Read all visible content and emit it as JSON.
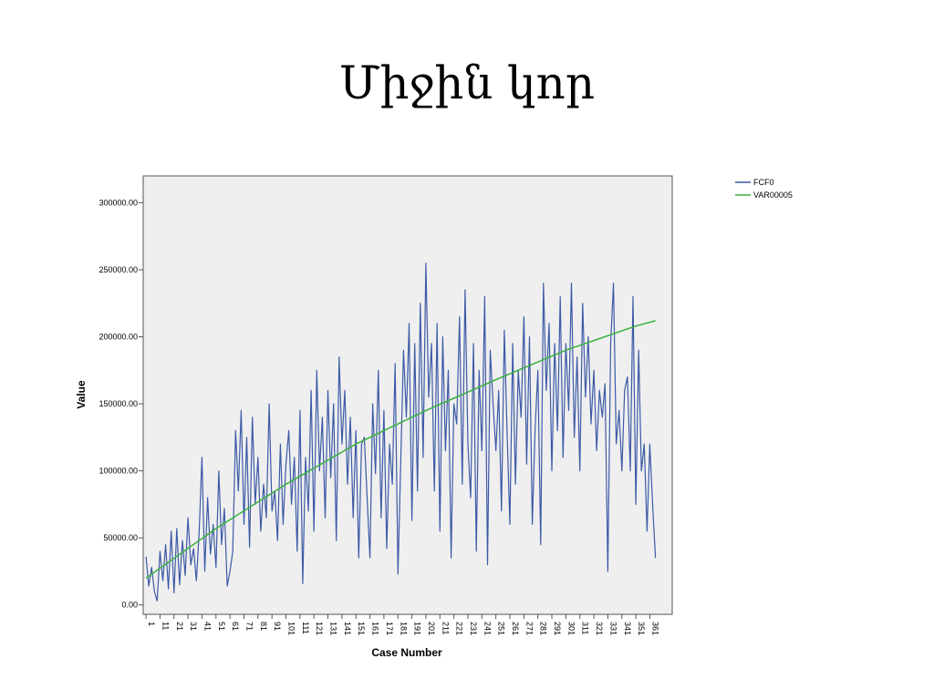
{
  "slide": {
    "title": "Միջին կոր"
  },
  "chart_data": {
    "type": "line",
    "xlabel": "Case Number",
    "ylabel": "Value",
    "ylim": [
      -7000,
      320000
    ],
    "xlim": [
      -1,
      377
    ],
    "y_ticks": [
      0,
      50000,
      100000,
      150000,
      200000,
      250000,
      300000
    ],
    "y_tick_labels": [
      "0.00",
      "50000.00",
      "100000.00",
      "150000.00",
      "200000.00",
      "250000.00",
      "300000.00"
    ],
    "x_ticks": [
      1,
      11,
      21,
      31,
      41,
      51,
      61,
      71,
      81,
      91,
      101,
      111,
      121,
      131,
      141,
      151,
      161,
      171,
      181,
      191,
      201,
      211,
      221,
      231,
      241,
      251,
      261,
      271,
      281,
      291,
      301,
      311,
      321,
      331,
      341,
      351,
      361
    ],
    "x_tick_labels": [
      "1",
      "11",
      "21",
      "31",
      "41",
      "51",
      "61",
      "71",
      "81",
      "91",
      "101",
      "111",
      "121",
      "131",
      "141",
      "151",
      "161",
      "171",
      "181",
      "191",
      "201",
      "211",
      "221",
      "231",
      "241",
      "251",
      "261",
      "271",
      "281",
      "291",
      "301",
      "311",
      "321",
      "331",
      "341",
      "351",
      "361"
    ],
    "grid": false,
    "plot_background": "#efefef",
    "legend": {
      "placement": "outside-top-right"
    },
    "series": [
      {
        "name": "FCF0",
        "color": "#3c5aa6",
        "x": [
          1,
          3,
          5,
          7,
          9,
          11,
          13,
          15,
          17,
          19,
          21,
          23,
          25,
          27,
          29,
          31,
          33,
          35,
          37,
          39,
          41,
          43,
          45,
          47,
          49,
          51,
          53,
          55,
          57,
          59,
          61,
          63,
          65,
          67,
          69,
          71,
          73,
          75,
          77,
          79,
          81,
          83,
          85,
          87,
          89,
          91,
          93,
          95,
          97,
          99,
          101,
          103,
          105,
          107,
          109,
          111,
          113,
          115,
          117,
          119,
          121,
          123,
          125,
          127,
          129,
          131,
          133,
          135,
          137,
          139,
          141,
          143,
          145,
          147,
          149,
          151,
          153,
          155,
          157,
          159,
          161,
          163,
          165,
          167,
          169,
          171,
          173,
          175,
          177,
          179,
          181,
          183,
          185,
          187,
          189,
          191,
          193,
          195,
          197,
          199,
          201,
          203,
          205,
          207,
          209,
          211,
          213,
          215,
          217,
          219,
          221,
          223,
          225,
          227,
          229,
          231,
          233,
          235,
          237,
          239,
          241,
          243,
          245,
          247,
          249,
          251,
          253,
          255,
          257,
          259,
          261,
          263,
          265,
          267,
          269,
          271,
          273,
          275,
          277,
          279,
          281,
          283,
          285,
          287,
          289,
          291,
          293,
          295,
          297,
          299,
          301,
          303,
          305,
          307,
          309,
          311,
          313,
          315,
          317,
          319,
          321,
          323,
          325,
          327,
          329,
          331,
          333,
          335,
          337,
          339,
          341,
          343,
          345,
          347,
          349,
          351,
          353,
          355,
          357,
          359,
          361,
          363,
          365
        ],
        "values": [
          36000,
          14000,
          28000,
          10000,
          3000,
          40000,
          18000,
          45000,
          12000,
          55000,
          9000,
          57000,
          15000,
          48000,
          22000,
          65000,
          30000,
          42000,
          18000,
          55000,
          110000,
          25000,
          80000,
          38000,
          60000,
          28000,
          100000,
          45000,
          72000,
          14000,
          25000,
          40000,
          130000,
          85000,
          145000,
          60000,
          125000,
          43000,
          140000,
          75000,
          110000,
          55000,
          90000,
          65000,
          150000,
          70000,
          85000,
          48000,
          120000,
          60000,
          105000,
          130000,
          75000,
          110000,
          40000,
          145000,
          16000,
          110000,
          70000,
          160000,
          55000,
          175000,
          100000,
          140000,
          65000,
          160000,
          95000,
          150000,
          48000,
          185000,
          120000,
          160000,
          90000,
          140000,
          65000,
          130000,
          35000,
          120000,
          125000,
          80000,
          35000,
          150000,
          98000,
          175000,
          65000,
          145000,
          42000,
          120000,
          90000,
          180000,
          23000,
          105000,
          190000,
          140000,
          210000,
          63000,
          195000,
          85000,
          225000,
          110000,
          255000,
          155000,
          195000,
          85000,
          210000,
          55000,
          200000,
          115000,
          175000,
          35000,
          150000,
          135000,
          215000,
          90000,
          235000,
          120000,
          80000,
          195000,
          40000,
          175000,
          115000,
          230000,
          30000,
          190000,
          150000,
          115000,
          160000,
          70000,
          205000,
          130000,
          60000,
          195000,
          90000,
          175000,
          140000,
          215000,
          105000,
          200000,
          60000,
          130000,
          175000,
          45000,
          240000,
          160000,
          210000,
          100000,
          195000,
          130000,
          230000,
          110000,
          195000,
          145000,
          240000,
          125000,
          185000,
          100000,
          225000,
          155000,
          200000,
          135000,
          175000,
          115000,
          160000,
          140000,
          165000,
          25000,
          195000,
          240000,
          120000,
          145000,
          100000,
          160000,
          170000,
          100000,
          230000,
          75000,
          190000,
          100000,
          120000,
          55000,
          120000,
          75000,
          35000
        ]
      },
      {
        "name": "VAR00005",
        "color": "#3ab03e",
        "x": [
          1,
          51,
          101,
          151,
          201,
          251,
          301,
          351,
          365
        ],
        "values": [
          20000,
          57000,
          90000,
          120000,
          145000,
          168000,
          190000,
          208000,
          212000
        ]
      }
    ]
  }
}
